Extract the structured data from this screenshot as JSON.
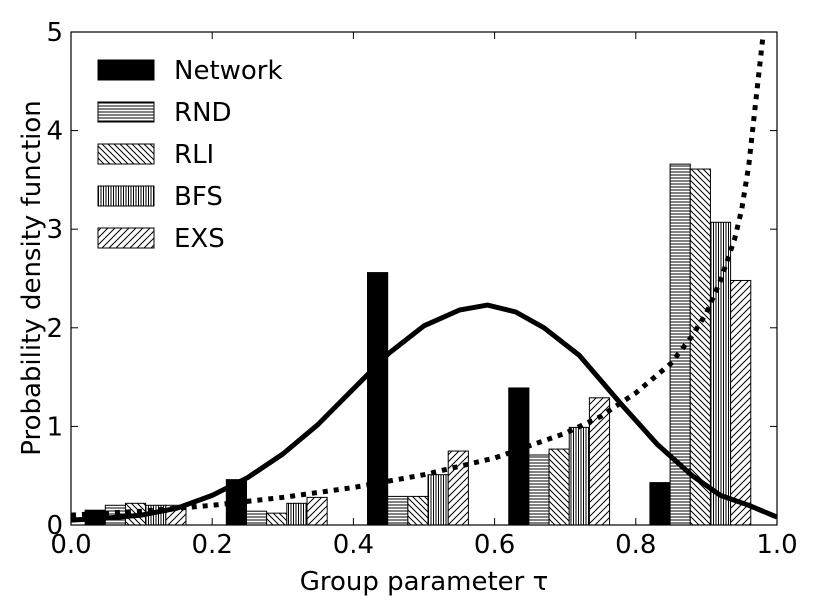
{
  "chart_data": {
    "type": "bar",
    "xlabel": "Group parameter τ",
    "ylabel": "Probability density function",
    "xlim": [
      0.0,
      1.0
    ],
    "ylim": [
      0,
      5
    ],
    "xticks": [
      "0.0",
      "0.2",
      "0.4",
      "0.6",
      "0.8",
      "1.0"
    ],
    "yticks": [
      "0",
      "1",
      "2",
      "3",
      "4",
      "5"
    ],
    "grid": false,
    "legend_position": "top-left",
    "bin_width": 0.2,
    "bin_starts": [
      0.0,
      0.2,
      0.4,
      0.6,
      0.8
    ],
    "series": [
      {
        "name": "Network",
        "pattern": "solid",
        "values": [
          0.15,
          0.46,
          2.56,
          1.39,
          0.43
        ]
      },
      {
        "name": "RND",
        "pattern": "horizontal",
        "values": [
          0.2,
          0.14,
          0.29,
          0.71,
          3.66
        ]
      },
      {
        "name": "RLI",
        "pattern": "diagonal-back",
        "values": [
          0.22,
          0.12,
          0.29,
          0.77,
          3.61
        ]
      },
      {
        "name": "BFS",
        "pattern": "vertical",
        "values": [
          0.2,
          0.22,
          0.51,
          0.99,
          3.07
        ]
      },
      {
        "name": "EXS",
        "pattern": "diagonal-forward",
        "values": [
          0.2,
          0.28,
          0.75,
          1.29,
          2.48
        ]
      }
    ],
    "curves": [
      {
        "style": "solid",
        "x": [
          0.0,
          0.05,
          0.1,
          0.15,
          0.2,
          0.25,
          0.3,
          0.35,
          0.4,
          0.45,
          0.5,
          0.55,
          0.59,
          0.63,
          0.67,
          0.72,
          0.78,
          0.83,
          0.88,
          0.92,
          0.96,
          1.0
        ],
        "y": [
          0.05,
          0.07,
          0.1,
          0.17,
          0.3,
          0.48,
          0.72,
          1.02,
          1.38,
          1.74,
          2.02,
          2.18,
          2.23,
          2.16,
          2.0,
          1.72,
          1.22,
          0.82,
          0.5,
          0.3,
          0.2,
          0.08
        ]
      },
      {
        "style": "dotted",
        "x": [
          0.0,
          0.1,
          0.2,
          0.3,
          0.4,
          0.5,
          0.6,
          0.7,
          0.75,
          0.8,
          0.85,
          0.88,
          0.9,
          0.92,
          0.94,
          0.95,
          0.96,
          0.97,
          0.98
        ],
        "y": [
          0.1,
          0.14,
          0.2,
          0.28,
          0.38,
          0.51,
          0.68,
          0.93,
          1.1,
          1.34,
          1.64,
          1.92,
          2.15,
          2.48,
          2.9,
          3.2,
          3.65,
          4.3,
          4.95
        ]
      }
    ]
  }
}
